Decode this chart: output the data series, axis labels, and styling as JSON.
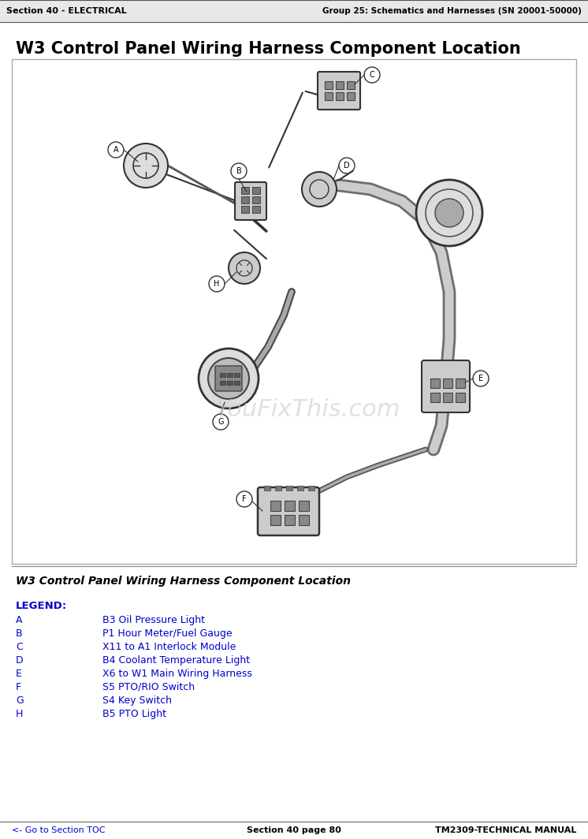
{
  "page_title": "W3 Control Panel Wiring Harness Component Location",
  "header_left": "Section 40 - ELECTRICAL",
  "header_right": "Group 25: Schematics and Harnesses (SN 20001-50000)",
  "diagram_caption": "W3 Control Panel Wiring Harness Component Location",
  "legend_title": "LEGEND:",
  "legend_items": [
    [
      "A",
      "B3 Oil Pressure Light"
    ],
    [
      "B",
      "P1 Hour Meter/Fuel Gauge"
    ],
    [
      "C",
      "X11 to A1 Interlock Module"
    ],
    [
      "D",
      "B4 Coolant Temperature Light"
    ],
    [
      "E",
      "X6 to W1 Main Wiring Harness"
    ],
    [
      "F",
      "S5 PTO/RIO Switch"
    ],
    [
      "G",
      "S4 Key Switch"
    ],
    [
      "H",
      "B5 PTO Light"
    ]
  ],
  "footer_left": "<- Go to Section TOC",
  "footer_center": "Section 40 page 80",
  "footer_right": "TM2309-TECHNICAL MANUAL",
  "watermark": "YouFixThis.com",
  "bg_color": "#ffffff",
  "header_bg": "#f0f0f0",
  "header_border": "#000000",
  "text_color": "#000000",
  "blue_color": "#0000cc",
  "legend_blue": "#0000cc",
  "header_font_size": 8,
  "title_font_size": 14,
  "body_font_size": 9,
  "footer_font_size": 8
}
